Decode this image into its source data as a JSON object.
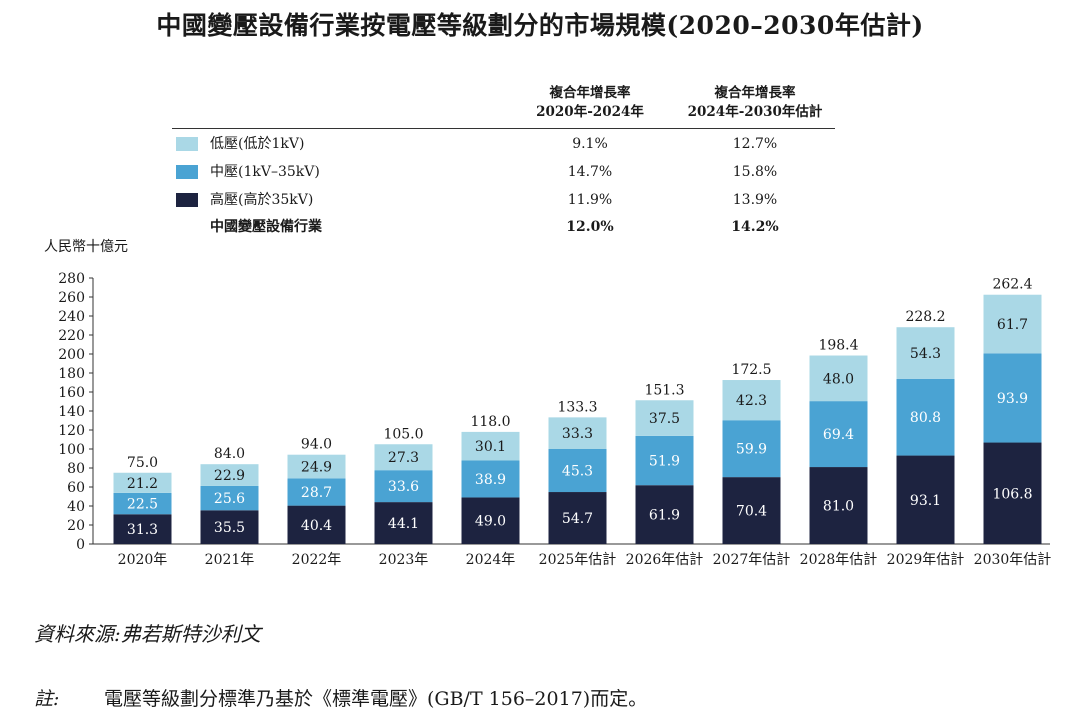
{
  "title": "中國變壓設備行業按電壓等級劃分的市場規模(2020–2030年估計)",
  "legend": {
    "header_col1": [
      "複合年增長率",
      "2020年-2024年"
    ],
    "header_col2": [
      "複合年增長率",
      "2024年-2030年估計"
    ],
    "rows": [
      {
        "label": "低壓(低於1kV)",
        "cagr1": "9.1%",
        "cagr2": "12.7%",
        "color": "#aad8e6"
      },
      {
        "label": "中壓(1kV–35kV)",
        "cagr1": "14.7%",
        "cagr2": "15.8%",
        "color": "#4aa3d3"
      },
      {
        "label": "高壓(高於35kV)",
        "cagr1": "11.9%",
        "cagr2": "13.9%",
        "color": "#1d2340"
      }
    ],
    "total": {
      "label": "中國變壓設備行業",
      "cagr1": "12.0%",
      "cagr2": "14.2%"
    }
  },
  "chart_data": {
    "type": "bar",
    "stacked": true,
    "ylabel": "人民幣十億元",
    "ylim": [
      0,
      280
    ],
    "yticks": [
      0,
      20,
      40,
      60,
      80,
      100,
      120,
      140,
      160,
      180,
      200,
      220,
      240,
      260,
      280
    ],
    "categories": [
      "2020年",
      "2021年",
      "2022年",
      "2023年",
      "2024年",
      "2025年估計",
      "2026年估計",
      "2027年估計",
      "2028年估計",
      "2029年估計",
      "2030年估計"
    ],
    "series": [
      {
        "name": "高壓(高於35kV)",
        "color": "#1d2340",
        "label_color": "#ffffff",
        "values": [
          31.3,
          35.5,
          40.4,
          44.1,
          49.0,
          54.7,
          61.9,
          70.4,
          81.0,
          93.1,
          106.8
        ],
        "labels": [
          "31.3",
          "35.5",
          "40.4",
          "44.1",
          "49.0",
          "54.7",
          "61.9",
          "70.4",
          "81.0",
          "93.1",
          "106.8"
        ]
      },
      {
        "name": "中壓(1kV–35kV)",
        "color": "#4aa3d3",
        "label_color": "#ffffff",
        "values": [
          22.5,
          25.6,
          28.7,
          33.6,
          38.9,
          45.3,
          51.9,
          59.9,
          69.4,
          80.8,
          93.9
        ],
        "labels": [
          "22.5",
          "25.6",
          "28.7",
          "33.6",
          "38.9",
          "45.3",
          "51.9",
          "59.9",
          "69.4",
          "80.8",
          "93.9"
        ]
      },
      {
        "name": "低壓(低於1kV)",
        "color": "#aad8e6",
        "label_color": "#1a1a1a",
        "values": [
          21.2,
          22.9,
          24.9,
          27.3,
          30.1,
          33.3,
          37.5,
          42.3,
          48.0,
          54.3,
          61.7
        ],
        "labels": [
          "21.2",
          "22.9",
          "24.9",
          "27.3",
          "30.1",
          "33.3",
          "37.5",
          "42.3",
          "48.0",
          "54.3",
          "61.7"
        ]
      }
    ],
    "totals": [
      75.0,
      84.0,
      94.0,
      105.0,
      118.0,
      133.3,
      151.3,
      172.5,
      198.4,
      228.2,
      262.4
    ],
    "total_labels": [
      "75.0",
      "84.0",
      "94.0",
      "105.0",
      "118.0",
      "133.3",
      "151.3",
      "172.5",
      "198.4",
      "228.2",
      "262.4"
    ]
  },
  "source": "資料來源:弗若斯特沙利文",
  "note_label": "註:",
  "note_text": "電壓等級劃分標準乃基於《標準電壓》(GB/T 156–2017)而定。"
}
